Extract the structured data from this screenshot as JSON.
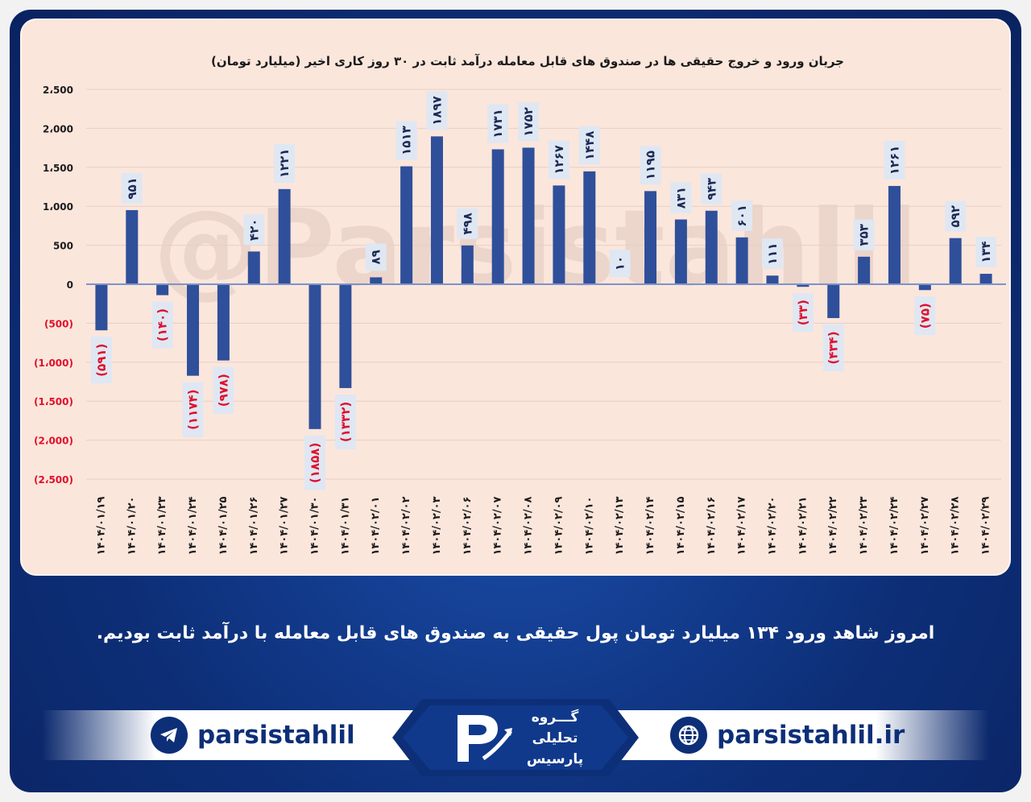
{
  "chart_data": {
    "type": "bar",
    "title": "جریان ورود و خروج حقیقی ها در صندوق های قابل معامله درآمد ثابت در ۳۰ روز کاری اخیر (میلیارد تومان)",
    "watermark": "@Parsistahlil",
    "ylim": [
      -2500,
      2500
    ],
    "yticks": [
      2500,
      2000,
      1500,
      1000,
      500,
      0,
      -500,
      -1000,
      -1500,
      -2000,
      -2500
    ],
    "ytick_labels": [
      "2،500",
      "2،000",
      "1،500",
      "1،000",
      "500",
      "0",
      "(500)",
      "(1،000)",
      "(1،500)",
      "(2،000)",
      "(2،500)"
    ],
    "categories": [
      "۱۴۰۴/۰۱/۱۹",
      "۱۴۰۴/۰۱/۲۰",
      "۱۴۰۴/۰۱/۲۳",
      "۱۴۰۴/۰۱/۲۴",
      "۱۴۰۴/۰۱/۲۵",
      "۱۴۰۴/۰۱/۲۶",
      "۱۴۰۴/۰۱/۲۷",
      "۱۴۰۴/۰۱/۳۰",
      "۱۴۰۴/۰۱/۳۱",
      "۱۴۰۴/۰۲/۰۱",
      "۱۴۰۴/۰۲/۰۲",
      "۱۴۰۴/۰۲/۰۳",
      "۱۴۰۴/۰۲/۰۶",
      "۱۴۰۴/۰۲/۰۷",
      "۱۴۰۴/۰۲/۰۸",
      "۱۴۰۴/۰۲/۰۹",
      "۱۴۰۴/۰۲/۱۰",
      "۱۴۰۴/۰۲/۱۳",
      "۱۴۰۴/۰۲/۱۴",
      "۱۴۰۴/۰۲/۱۵",
      "۱۴۰۴/۰۲/۱۶",
      "۱۴۰۴/۰۲/۱۷",
      "۱۴۰۴/۰۲/۲۰",
      "۱۴۰۴/۰۲/۲۱",
      "۱۴۰۴/۰۲/۲۲",
      "۱۴۰۴/۰۲/۲۳",
      "۱۴۰۴/۰۲/۲۴",
      "۱۴۰۴/۰۲/۲۷",
      "۱۴۰۴/۰۲/۲۸",
      "۱۴۰۴/۰۲/۲۹"
    ],
    "values": [
      -591,
      951,
      -140,
      -1174,
      -978,
      420,
      1221,
      -1858,
      -1332,
      89,
      1513,
      1897,
      498,
      1731,
      1752,
      1267,
      1448,
      10,
      1195,
      831,
      943,
      601,
      111,
      -33,
      -434,
      353,
      1261,
      -75,
      592,
      134
    ],
    "value_labels": [
      "(۵۹۱)",
      "۹۵۱",
      "(۱۴۰)",
      "(۱۱۷۴)",
      "(۹۷۸)",
      "۴۲۰",
      "۱۲۲۱",
      "(۱۸۵۸)",
      "(۱۳۳۲)",
      "۸۹",
      "۱۵۱۳",
      "۱۸۹۷",
      "۴۹۸",
      "۱۷۳۱",
      "۱۷۵۲",
      "۱۲۶۷",
      "۱۴۴۸",
      "۱۰",
      "۱۱۹۵",
      "۸۳۱",
      "۹۴۳",
      "۶۰۱",
      "۱۱۱",
      "(۳۳)",
      "(۴۳۴)",
      "۳۵۳",
      "۱۲۶۱",
      "(۷۵)",
      "۵۹۲",
      "۱۳۴"
    ],
    "grid": true,
    "legend": "none",
    "colors": {
      "bar": "#2f4f9a",
      "negative_label": "#e0102a",
      "positive_label": "#1b2a55",
      "label_box": "#dfe7f3",
      "grid": "#e6cfc6",
      "axis": "#7d93c8",
      "panel": "#fbe6dc"
    }
  },
  "caption": "امروز شاهد ورود ۱۳۴ میلیارد تومان پول حقیقی به صندوق های قابل معامله با درآمد ثابت بودیم.",
  "footer": {
    "telegram_handle": "parsistahlil",
    "website": "parsistahlil.ir",
    "brand_line1": "گـــروه",
    "brand_line2": "تحلیلی",
    "brand_line3": "پارسیس",
    "icons": [
      "telegram-icon",
      "globe-icon",
      "parsis-logo"
    ]
  }
}
